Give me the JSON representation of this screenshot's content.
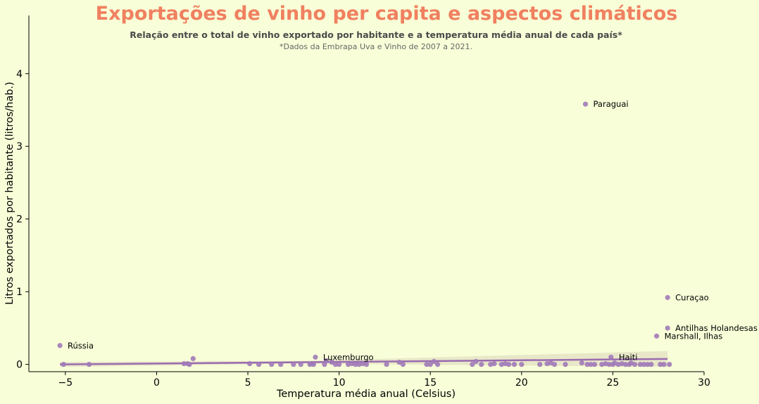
{
  "chart_data": {
    "type": "scatter",
    "title": "Exportações de vinho per capita e aspectos climáticos",
    "subtitle": "Relação entre o total de vinho exportado por habitante e a temperatura média anual de cada país*",
    "note": "*Dados da Embrapa Uva e Vinho de 2007 a 2021.",
    "xlabel": "Temperatura média anual (Celsius)",
    "ylabel": "Litros exportados por habitante (litros/hab.)",
    "xlim": [
      -7,
      30
    ],
    "ylim": [
      -0.1,
      4.8
    ],
    "xticks": [
      -5,
      0,
      5,
      10,
      15,
      20,
      25,
      30
    ],
    "yticks": [
      0,
      1,
      2,
      3,
      4
    ],
    "grid": false,
    "colors": {
      "points": "#a07ab8",
      "regression_line": "#9a6bb0",
      "confidence_band": "#e8e8c8"
    },
    "regression": {
      "x": [
        -5.3,
        28.0
      ],
      "y": [
        0.0,
        0.075
      ]
    },
    "points": [
      {
        "x": -5.3,
        "y": 0.26
      },
      {
        "x": -5.1,
        "y": 0.0
      },
      {
        "x": -3.7,
        "y": 0.0
      },
      {
        "x": 1.5,
        "y": 0.01
      },
      {
        "x": 1.7,
        "y": 0.01
      },
      {
        "x": 1.8,
        "y": 0.0
      },
      {
        "x": 2.0,
        "y": 0.08
      },
      {
        "x": 5.1,
        "y": 0.01
      },
      {
        "x": 5.6,
        "y": 0.0
      },
      {
        "x": 6.3,
        "y": 0.0
      },
      {
        "x": 6.8,
        "y": 0.0
      },
      {
        "x": 7.5,
        "y": 0.0
      },
      {
        "x": 7.9,
        "y": 0.0
      },
      {
        "x": 8.4,
        "y": 0.0
      },
      {
        "x": 8.5,
        "y": 0.01
      },
      {
        "x": 8.6,
        "y": 0.0
      },
      {
        "x": 8.7,
        "y": 0.1
      },
      {
        "x": 9.2,
        "y": 0.0
      },
      {
        "x": 9.3,
        "y": 0.05
      },
      {
        "x": 9.6,
        "y": 0.03
      },
      {
        "x": 9.8,
        "y": 0.0
      },
      {
        "x": 10.0,
        "y": 0.0
      },
      {
        "x": 10.5,
        "y": 0.0
      },
      {
        "x": 10.7,
        "y": 0.01
      },
      {
        "x": 10.9,
        "y": 0.0
      },
      {
        "x": 11.1,
        "y": 0.0
      },
      {
        "x": 11.3,
        "y": 0.01
      },
      {
        "x": 11.5,
        "y": 0.0
      },
      {
        "x": 12.6,
        "y": 0.0
      },
      {
        "x": 13.3,
        "y": 0.03
      },
      {
        "x": 13.5,
        "y": 0.0
      },
      {
        "x": 14.8,
        "y": 0.0
      },
      {
        "x": 15.0,
        "y": 0.0
      },
      {
        "x": 15.2,
        "y": 0.04
      },
      {
        "x": 15.4,
        "y": 0.0
      },
      {
        "x": 17.3,
        "y": 0.0
      },
      {
        "x": 17.5,
        "y": 0.04
      },
      {
        "x": 17.8,
        "y": 0.0
      },
      {
        "x": 18.3,
        "y": 0.0
      },
      {
        "x": 18.5,
        "y": 0.01
      },
      {
        "x": 18.9,
        "y": 0.0
      },
      {
        "x": 19.1,
        "y": 0.01
      },
      {
        "x": 19.3,
        "y": 0.0
      },
      {
        "x": 19.6,
        "y": 0.0
      },
      {
        "x": 20.0,
        "y": 0.0
      },
      {
        "x": 21.0,
        "y": 0.0
      },
      {
        "x": 21.4,
        "y": 0.01
      },
      {
        "x": 21.6,
        "y": 0.02
      },
      {
        "x": 21.8,
        "y": 0.0
      },
      {
        "x": 22.4,
        "y": 0.0
      },
      {
        "x": 23.3,
        "y": 0.02
      },
      {
        "x": 23.5,
        "y": 3.58
      },
      {
        "x": 23.6,
        "y": 0.0
      },
      {
        "x": 23.8,
        "y": 0.0
      },
      {
        "x": 24.0,
        "y": 0.0
      },
      {
        "x": 24.4,
        "y": 0.0
      },
      {
        "x": 24.6,
        "y": 0.01
      },
      {
        "x": 24.8,
        "y": 0.0
      },
      {
        "x": 24.9,
        "y": 0.1
      },
      {
        "x": 25.0,
        "y": 0.0
      },
      {
        "x": 25.1,
        "y": 0.02
      },
      {
        "x": 25.3,
        "y": 0.0
      },
      {
        "x": 25.5,
        "y": 0.01
      },
      {
        "x": 25.7,
        "y": 0.0
      },
      {
        "x": 25.9,
        "y": 0.0
      },
      {
        "x": 26.0,
        "y": 0.02
      },
      {
        "x": 26.2,
        "y": 0.0
      },
      {
        "x": 26.5,
        "y": 0.0
      },
      {
        "x": 26.7,
        "y": 0.0
      },
      {
        "x": 26.9,
        "y": 0.0
      },
      {
        "x": 27.1,
        "y": 0.0
      },
      {
        "x": 27.4,
        "y": 0.39
      },
      {
        "x": 27.6,
        "y": 0.0
      },
      {
        "x": 27.8,
        "y": 0.0
      },
      {
        "x": 28.0,
        "y": 0.92
      },
      {
        "x": 28.0,
        "y": 0.5
      },
      {
        "x": 28.1,
        "y": 0.0
      }
    ],
    "annotations": [
      {
        "text": "Rússia",
        "x": -5.3,
        "y": 0.26
      },
      {
        "text": "Luxemburgo",
        "x": 8.7,
        "y": 0.1
      },
      {
        "text": "Paraguai",
        "x": 23.5,
        "y": 3.58
      },
      {
        "text": "Haiti",
        "x": 24.9,
        "y": 0.1
      },
      {
        "text": "Curaçao",
        "x": 28.0,
        "y": 0.92
      },
      {
        "text": "Antilhas Holandesas",
        "x": 28.0,
        "y": 0.5
      },
      {
        "text": "Marshall, Ilhas",
        "x": 27.4,
        "y": 0.39
      }
    ]
  }
}
